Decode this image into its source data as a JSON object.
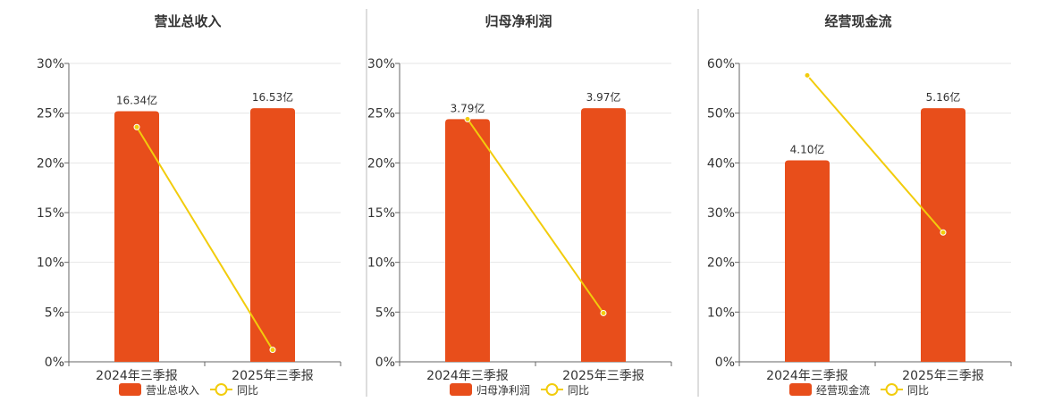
{
  "legend_line_label": "同比",
  "colors": {
    "bar": "#E84E1B",
    "line": "#F2CC0C",
    "grid": "#E6E6E6",
    "axis": "#666666",
    "divider": "#BBBBBB"
  },
  "chart_data": [
    {
      "type": "bar",
      "title": "营业总收入",
      "categories": [
        "2024年三季报",
        "2025年三季报"
      ],
      "ylim": [
        0,
        30
      ],
      "y_ticks": [
        "0%",
        "5%",
        "10%",
        "15%",
        "20%",
        "25%",
        "30%"
      ],
      "series": [
        {
          "name": "营业总收入",
          "type": "bar",
          "values": [
            25.2,
            25.5
          ],
          "labels": [
            "16.34亿",
            "16.53亿"
          ]
        },
        {
          "name": "同比",
          "type": "line",
          "values": [
            23.6,
            1.2
          ]
        }
      ]
    },
    {
      "type": "bar",
      "title": "归母净利润",
      "categories": [
        "2024年三季报",
        "2025年三季报"
      ],
      "ylim": [
        0,
        30
      ],
      "y_ticks": [
        "0%",
        "5%",
        "10%",
        "15%",
        "20%",
        "25%",
        "30%"
      ],
      "series": [
        {
          "name": "归母净利润",
          "type": "bar",
          "values": [
            24.4,
            25.5
          ],
          "labels": [
            "3.79亿",
            "3.97亿"
          ]
        },
        {
          "name": "同比",
          "type": "line",
          "values": [
            24.4,
            4.9
          ]
        }
      ]
    },
    {
      "type": "bar",
      "title": "经营现金流",
      "categories": [
        "2024年三季报",
        "2025年三季报"
      ],
      "ylim": [
        0,
        60
      ],
      "y_ticks": [
        "0%",
        "10%",
        "20%",
        "30%",
        "40%",
        "50%",
        "60%"
      ],
      "series": [
        {
          "name": "经营现金流",
          "type": "bar",
          "values": [
            40.5,
            51.0
          ],
          "labels": [
            "4.10亿",
            "5.16亿"
          ]
        },
        {
          "name": "同比",
          "type": "line",
          "values": [
            57.6,
            26.0
          ]
        }
      ]
    }
  ]
}
